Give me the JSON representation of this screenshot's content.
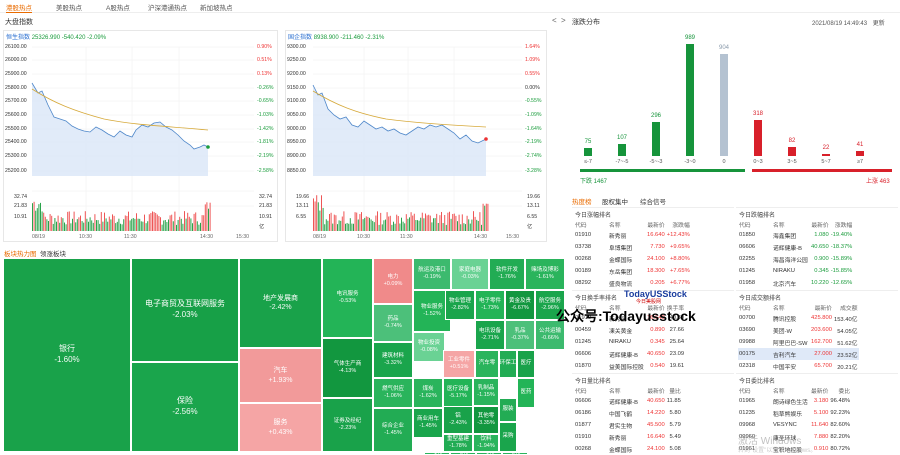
{
  "tabs": [
    "港股热点",
    "美股热点",
    "A股热点",
    "沪深港通热点",
    "新加坡热点"
  ],
  "panel_title": "大盘指数",
  "nav_prev": "<",
  "nav_next": ">",
  "indices": [
    {
      "name": "恒生指数",
      "price": "25326.990",
      "chg": "-540.420",
      "pct": "-2.09%",
      "left_ticks": [
        "26100.00",
        "26000.00",
        "25900.00",
        "25800.00",
        "25700.00",
        "25600.00",
        "25500.00",
        "25400.00",
        "25300.00",
        "25200.00"
      ],
      "right_ticks": [
        "0.90%",
        "0.51%",
        "0.13%",
        "-0.26%",
        "-0.65%",
        "-1.03%",
        "-1.42%",
        "-1.81%",
        "-2.19%",
        "-2.58%"
      ],
      "vol_ticks": [
        "32.74",
        "21.83",
        "10.91",
        "亿"
      ],
      "times": [
        "08/19",
        "10:30",
        "11:30",
        "14:30",
        "15:30"
      ]
    },
    {
      "name": "国企指数",
      "price": "8938.900",
      "chg": "-211.460",
      "pct": "-2.31%",
      "left_ticks": [
        "9300.00",
        "9250.00",
        "9200.00",
        "9150.00",
        "9100.00",
        "9050.00",
        "9000.00",
        "8950.00",
        "8900.00",
        "8850.00"
      ],
      "right_ticks": [
        "1.64%",
        "1.09%",
        "0.55%",
        "0.00%",
        "-0.55%",
        "-1.09%",
        "-1.64%",
        "-2.19%",
        "-2.74%",
        "-3.28%"
      ],
      "vol_ticks": [
        "19.66",
        "13.11",
        "6.55",
        "亿"
      ],
      "times": [
        "08/19",
        "10:30",
        "11:30",
        "14:30",
        "15:30"
      ]
    }
  ],
  "heatmap": {
    "tabs": [
      "板块热力图",
      "领涨板块"
    ],
    "tiles": [
      {
        "name": "银行",
        "pct": "-1.60%"
      },
      {
        "name": "电子商贸及互联网服务",
        "pct": "-2.03%"
      },
      {
        "name": "保险",
        "pct": "-2.56%"
      },
      {
        "name": "地产发展商",
        "pct": "-2.42%"
      },
      {
        "name": "汽车",
        "pct": "+1.93%"
      },
      {
        "name": "服务",
        "pct": "+0.43%"
      },
      {
        "name": "电讯服务",
        "pct": "-0.53%"
      },
      {
        "name": "气体生产商",
        "pct": "-4.13%"
      },
      {
        "name": "证券及经纪",
        "pct": "-2.23%"
      },
      {
        "name": "电力",
        "pct": "+0.09%"
      },
      {
        "name": "药品",
        "pct": "-0.74%"
      },
      {
        "name": "建筑材料",
        "pct": "-3.32%"
      },
      {
        "name": "燃气供应",
        "pct": "-1.06%"
      },
      {
        "name": "煤炭",
        "pct": "-1.62%"
      },
      {
        "name": "综合企业",
        "pct": "-1.45%"
      },
      {
        "name": "航运及港口",
        "pct": "-0.19%"
      },
      {
        "name": "家庭电器",
        "pct": "-0.03%"
      },
      {
        "name": "软件开发",
        "pct": "-1.76%"
      },
      {
        "name": "赌场及博彩",
        "pct": "-1.61%"
      },
      {
        "name": "物业服务",
        "pct": "-1.52%"
      },
      {
        "name": "物业管理",
        "pct": "-2.82%"
      },
      {
        "name": "电子零件",
        "pct": "-1.73%"
      },
      {
        "name": "黄金及贵",
        "pct": "-6.67%"
      },
      {
        "name": "航空服务",
        "pct": "-2.96%"
      },
      {
        "name": "物业投资",
        "pct": "-0.08%"
      },
      {
        "name": "电讯设备",
        "pct": "-2.71%"
      },
      {
        "name": "乳品",
        "pct": "-0.37%"
      },
      {
        "name": "公共运输",
        "pct": "-0.66%"
      },
      {
        "name": "工业零件",
        "pct": "+0.51%"
      },
      {
        "name": "汽车零",
        "pct": ""
      },
      {
        "name": "环保工",
        "pct": ""
      },
      {
        "name": "医疗",
        "pct": ""
      },
      {
        "name": "医疗设备",
        "pct": "-5.17%"
      },
      {
        "name": "乳制品",
        "pct": "-1.15%"
      },
      {
        "name": "商业用车",
        "pct": "-1.45%"
      },
      {
        "name": "铝",
        "pct": "-2.43%"
      },
      {
        "name": "其他零",
        "pct": "-3.35%"
      },
      {
        "name": "服装",
        "pct": ""
      },
      {
        "name": "重型基建",
        "pct": "-1.78%"
      },
      {
        "name": "饮料",
        "pct": "-1.94%"
      },
      {
        "name": "采购",
        "pct": ""
      },
      {
        "name": "医药",
        "pct": ""
      },
      {
        "name": "-1%",
        "pct": ""
      },
      {
        "name": "-3%",
        "pct": ""
      },
      {
        "name": "-1%",
        "pct": ""
      },
      {
        "name": "-2%",
        "pct": ""
      }
    ]
  },
  "dist": {
    "title": "涨跌分布",
    "datetime": "2021/08/19 14:49:43",
    "update": "更新",
    "bars": [
      {
        "label": "≤-7",
        "value": 75
      },
      {
        "label": "-7~-5",
        "value": 107
      },
      {
        "label": "-5~-3",
        "value": 296
      },
      {
        "label": "-3~0",
        "value": 989
      },
      {
        "label": "0",
        "value": 904
      },
      {
        "label": "0~3",
        "value": 318
      },
      {
        "label": "3~5",
        "value": 82
      },
      {
        "label": "5~7",
        "value": 22
      },
      {
        "label": "≥7",
        "value": 41
      }
    ],
    "down_label": "下跌 1467",
    "up_label": "上涨 463",
    "colors": {
      "down": "#16943b",
      "flat": "#b4c2d1",
      "up": "#d8202a"
    }
  },
  "ranks_tabs": [
    "热度榜",
    "股权集中",
    "综合信号"
  ],
  "ranks": [
    {
      "title": "今日涨幅排名",
      "cols": [
        "代码",
        "名称",
        "最新价",
        "涨跌幅"
      ],
      "rows": [
        [
          "01910",
          "新秀丽",
          "16.640",
          "+12.43%"
        ],
        [
          "03738",
          "阜博集团",
          "7.730",
          "+9.65%"
        ],
        [
          "00268",
          "金蝶国际",
          "24.100",
          "+8.80%"
        ],
        [
          "00189",
          "东岳集团",
          "18.300",
          "+7.65%"
        ],
        [
          "08292",
          "盛良物流",
          "0.205",
          "+6.77%"
        ]
      ]
    },
    {
      "title": "今日跌幅排名",
      "cols": [
        "代码",
        "名称",
        "最新价",
        "涨跌幅"
      ],
      "rows": [
        [
          "01850",
          "海鑫集团",
          "1.080",
          "-19.40%"
        ],
        [
          "06606",
          "诺辉健康-B",
          "40.650",
          "-18.37%"
        ],
        [
          "02255",
          "海昌海洋公园",
          "0.900",
          "-15.89%"
        ],
        [
          "01245",
          "NIRAKU",
          "0.345",
          "-15.85%"
        ],
        [
          "01958",
          "北京汽车",
          "10.220",
          "-12.65%"
        ]
      ]
    },
    {
      "title": "今日换手率排名",
      "cols": [
        "代码",
        "名称",
        "最新价",
        "换手率"
      ],
      "rows": [
        [
          "01910",
          "新秀丽",
          "16.640",
          "40.30"
        ],
        [
          "00459",
          "凍关黄金",
          "0.890",
          "27.66"
        ],
        [
          "01245",
          "NIRAKU",
          "0.345",
          "25.64"
        ],
        [
          "06606",
          "诺辉健康-B",
          "40.650",
          "23.09"
        ],
        [
          "01870",
          "益美国际控股",
          "0.540",
          "19.61"
        ]
      ]
    },
    {
      "title": "今日成交额排名",
      "cols": [
        "代码",
        "名称",
        "最新价",
        "成交额"
      ],
      "rows": [
        [
          "00700",
          "腾讯控股",
          "425.800",
          "153.40亿"
        ],
        [
          "03690",
          "美团-W",
          "203.600",
          "54.05亿"
        ],
        [
          "09988",
          "阿里巴巴-SW",
          "162.700",
          "51.62亿"
        ],
        [
          "00175",
          "吉利汽车",
          "27.000",
          "23.52亿"
        ],
        [
          "02318",
          "中国平安",
          "65.700",
          "20.21亿"
        ]
      ]
    },
    {
      "title": "今日量比排名",
      "cols": [
        "代码",
        "名称",
        "最新价",
        "量比"
      ],
      "rows": [
        [
          "06606",
          "诺辉健康-B",
          "40.650",
          "11.85"
        ],
        [
          "06186",
          "中国飞鹤",
          "14.220",
          "5.80"
        ],
        [
          "01877",
          "君实生物",
          "45.500",
          "5.79"
        ],
        [
          "01910",
          "新秀丽",
          "16.640",
          "5.49"
        ],
        [
          "00268",
          "金蝶国际",
          "24.100",
          "5.08"
        ]
      ]
    },
    {
      "title": "今日委比排名",
      "cols": [
        "代码",
        "名称",
        "最新价",
        "委比"
      ],
      "rows": [
        [
          "01965",
          "朗诗绿色生活",
          "3.180",
          "96.48%"
        ],
        [
          "01235",
          "稻草熊娱乐",
          "5.100",
          "92.23%"
        ],
        [
          "09968",
          "VESYNC",
          "11.640",
          "82.60%"
        ],
        [
          "09960",
          "康圣环球",
          "7.880",
          "82.20%"
        ],
        [
          "01961",
          "宝积地控股",
          "0.910",
          "80.72%"
        ]
      ]
    }
  ],
  "watermarks": {
    "brand": "TodayUSStock",
    "brand_sub": "今日美股网",
    "wechat": "公众号:Todayusstock",
    "win1": "激活 Windows",
    "win2": "转到\"设置\"以激活 Windows。"
  }
}
